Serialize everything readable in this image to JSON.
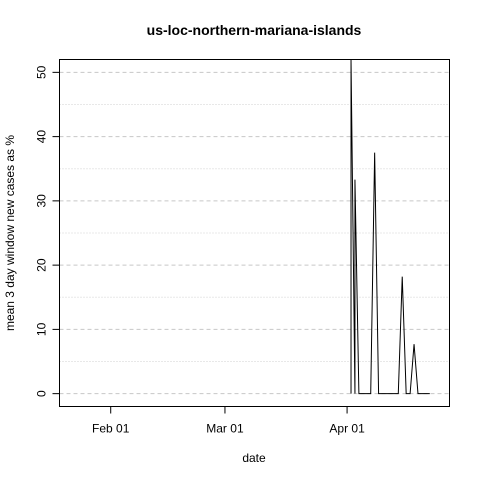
{
  "chart_data": {
    "type": "line",
    "title": "us-loc-northern-mariana-islands",
    "xlabel": "date",
    "ylabel": "mean  3  day window new cases as %",
    "xlim": [
      "2020-01-19",
      "2020-04-27"
    ],
    "ylim": [
      -2,
      52
    ],
    "x_ticks": [
      {
        "date": "2020-02-01",
        "label": "Feb 01"
      },
      {
        "date": "2020-03-01",
        "label": "Mar 01"
      },
      {
        "date": "2020-04-01",
        "label": "Apr 01"
      }
    ],
    "y_ticks": [
      0,
      10,
      20,
      30,
      40,
      50
    ],
    "y_minor_grid": [
      5,
      15,
      25,
      35,
      45
    ],
    "grid": true,
    "series": [
      {
        "color": "#000000",
        "points": [
          {
            "x": "2020-04-02",
            "y": 0
          },
          {
            "x": "2020-04-02",
            "y": 52
          },
          {
            "x": "2020-04-03",
            "y": 0
          },
          {
            "x": "2020-04-03",
            "y": 33.3
          },
          {
            "x": "2020-04-04",
            "y": 0
          },
          {
            "x": "2020-04-07",
            "y": 0
          },
          {
            "x": "2020-04-08",
            "y": 37.5
          },
          {
            "x": "2020-04-09",
            "y": 0
          },
          {
            "x": "2020-04-14",
            "y": 0
          },
          {
            "x": "2020-04-15",
            "y": 18.2
          },
          {
            "x": "2020-04-16",
            "y": 0
          },
          {
            "x": "2020-04-17",
            "y": 0
          },
          {
            "x": "2020-04-18",
            "y": 7.7
          },
          {
            "x": "2020-04-19",
            "y": 0
          },
          {
            "x": "2020-04-22",
            "y": 0
          }
        ]
      }
    ]
  }
}
